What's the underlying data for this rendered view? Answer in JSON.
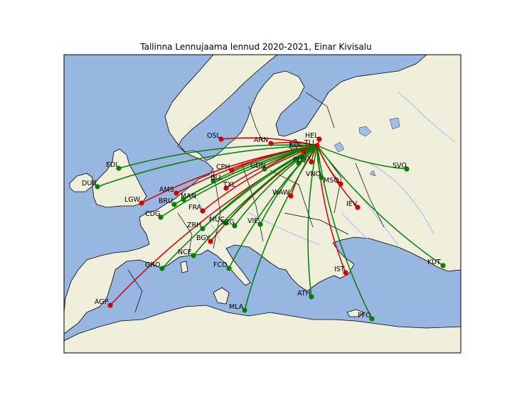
{
  "title": "Tallinna Lennujaama lennud 2020-2021, Einar Kivisalu",
  "colors": {
    "sea": "#97b6e1",
    "land": "#efefdb",
    "coast": "#000000",
    "river": "#9fc0ea",
    "green_route": "#008000",
    "red_route": "#d40000"
  },
  "hub": {
    "code": "TLL"
  },
  "destinations": [
    {
      "code": "HEL",
      "color": "red"
    },
    {
      "code": "KDL",
      "color": "red"
    },
    {
      "code": "RIX",
      "color": "red"
    },
    {
      "code": "ARN",
      "color": "red"
    },
    {
      "code": "OSL",
      "color": "red"
    },
    {
      "code": "CPH",
      "color": "red"
    },
    {
      "code": "AMS",
      "color": "red"
    },
    {
      "code": "LGW",
      "color": "red"
    },
    {
      "code": "FRA",
      "color": "red"
    },
    {
      "code": "BGY",
      "color": "red"
    },
    {
      "code": "AGP",
      "color": "red"
    },
    {
      "code": "WAW",
      "color": "red"
    },
    {
      "code": "IEV",
      "color": "red"
    },
    {
      "code": "MSQ",
      "color": "red"
    },
    {
      "code": "IST",
      "color": "red"
    },
    {
      "code": "TXL",
      "color": "red"
    },
    {
      "code": "EDI",
      "color": "green"
    },
    {
      "code": "DUB",
      "color": "green"
    },
    {
      "code": "BRU",
      "color": "green"
    },
    {
      "code": "CDG",
      "color": "green"
    },
    {
      "code": "MAN",
      "color": "green"
    },
    {
      "code": "ZRH",
      "color": "green"
    },
    {
      "code": "MUC",
      "color": "green"
    },
    {
      "code": "SZG",
      "color": "green"
    },
    {
      "code": "VIE",
      "color": "green"
    },
    {
      "code": "NCE",
      "color": "green"
    },
    {
      "code": "GRO",
      "color": "green"
    },
    {
      "code": "FCO",
      "color": "green"
    },
    {
      "code": "MLA",
      "color": "green"
    },
    {
      "code": "ATH",
      "color": "green"
    },
    {
      "code": "PFO",
      "color": "green"
    },
    {
      "code": "KUT",
      "color": "green"
    },
    {
      "code": "SVO",
      "color": "green"
    },
    {
      "code": "VNO",
      "color": "green"
    },
    {
      "code": "GDN",
      "color": "green"
    },
    {
      "code": "PLQ",
      "color": "green"
    },
    {
      "code": "BLL",
      "color": "green"
    }
  ]
}
